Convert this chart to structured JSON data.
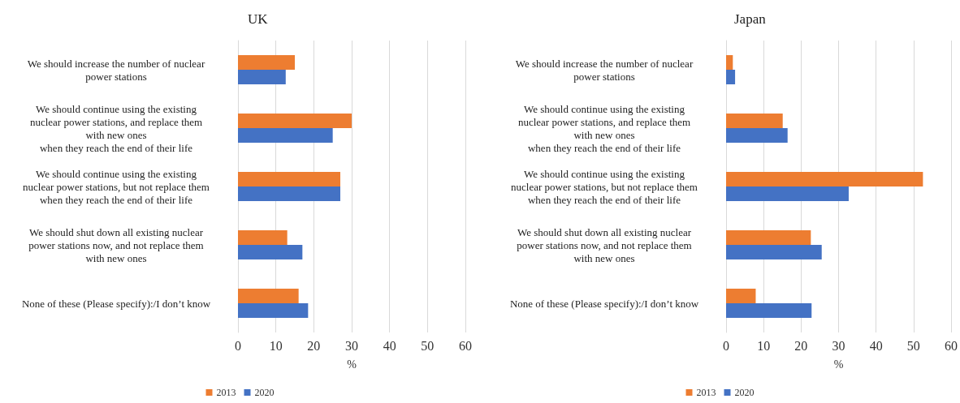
{
  "chart_data": [
    {
      "type": "bar",
      "orientation": "horizontal",
      "title": "UK",
      "xlabel": "%",
      "categories": [
        "We should increase the number of nuclear\npower stations",
        "We should continue using the existing\nnuclear power stations, and replace them\nwith new ones\nwhen they reach the end of their life",
        "We should continue using the existing\nnuclear power stations, but not replace them\nwhen they reach the end of their life",
        "We should shut down all existing nuclear\npower stations now, and not replace them\nwith new ones",
        "None of these (Please specify):/I don’t know"
      ],
      "series": [
        {
          "name": "2013",
          "color": "#ed7d31",
          "values": [
            15,
            30,
            27,
            13,
            16
          ]
        },
        {
          "name": "2020",
          "color": "#4472c4",
          "values": [
            12.6,
            25,
            27,
            17,
            18.5
          ]
        }
      ],
      "xlim": [
        0,
        60
      ],
      "xticks": [
        0,
        10,
        20,
        30,
        40,
        50,
        60
      ],
      "grid": "x",
      "legend": "bottom"
    },
    {
      "type": "bar",
      "orientation": "horizontal",
      "title": "Japan",
      "xlabel": "%",
      "categories": [
        "We should increase the number of nuclear\npower stations",
        "We should continue using the existing\nnuclear power stations, and replace them\nwith new ones\nwhen they reach the end of their life",
        "We should continue using the existing\nnuclear power stations, but not replace them\nwhen they reach the end of their life",
        "We should shut down all existing nuclear\npower stations now, and not replace them\nwith new ones",
        "None of these (Please specify):/I don’t know"
      ],
      "series": [
        {
          "name": "2013",
          "color": "#ed7d31",
          "values": [
            1.8,
            15.1,
            52.5,
            22.6,
            7.9
          ]
        },
        {
          "name": "2020",
          "color": "#4472c4",
          "values": [
            2.4,
            16.4,
            32.7,
            25.5,
            22.8
          ]
        }
      ],
      "xlim": [
        0,
        60
      ],
      "xticks": [
        0,
        10,
        20,
        30,
        40,
        50,
        60
      ],
      "grid": "x",
      "legend": "bottom"
    }
  ]
}
